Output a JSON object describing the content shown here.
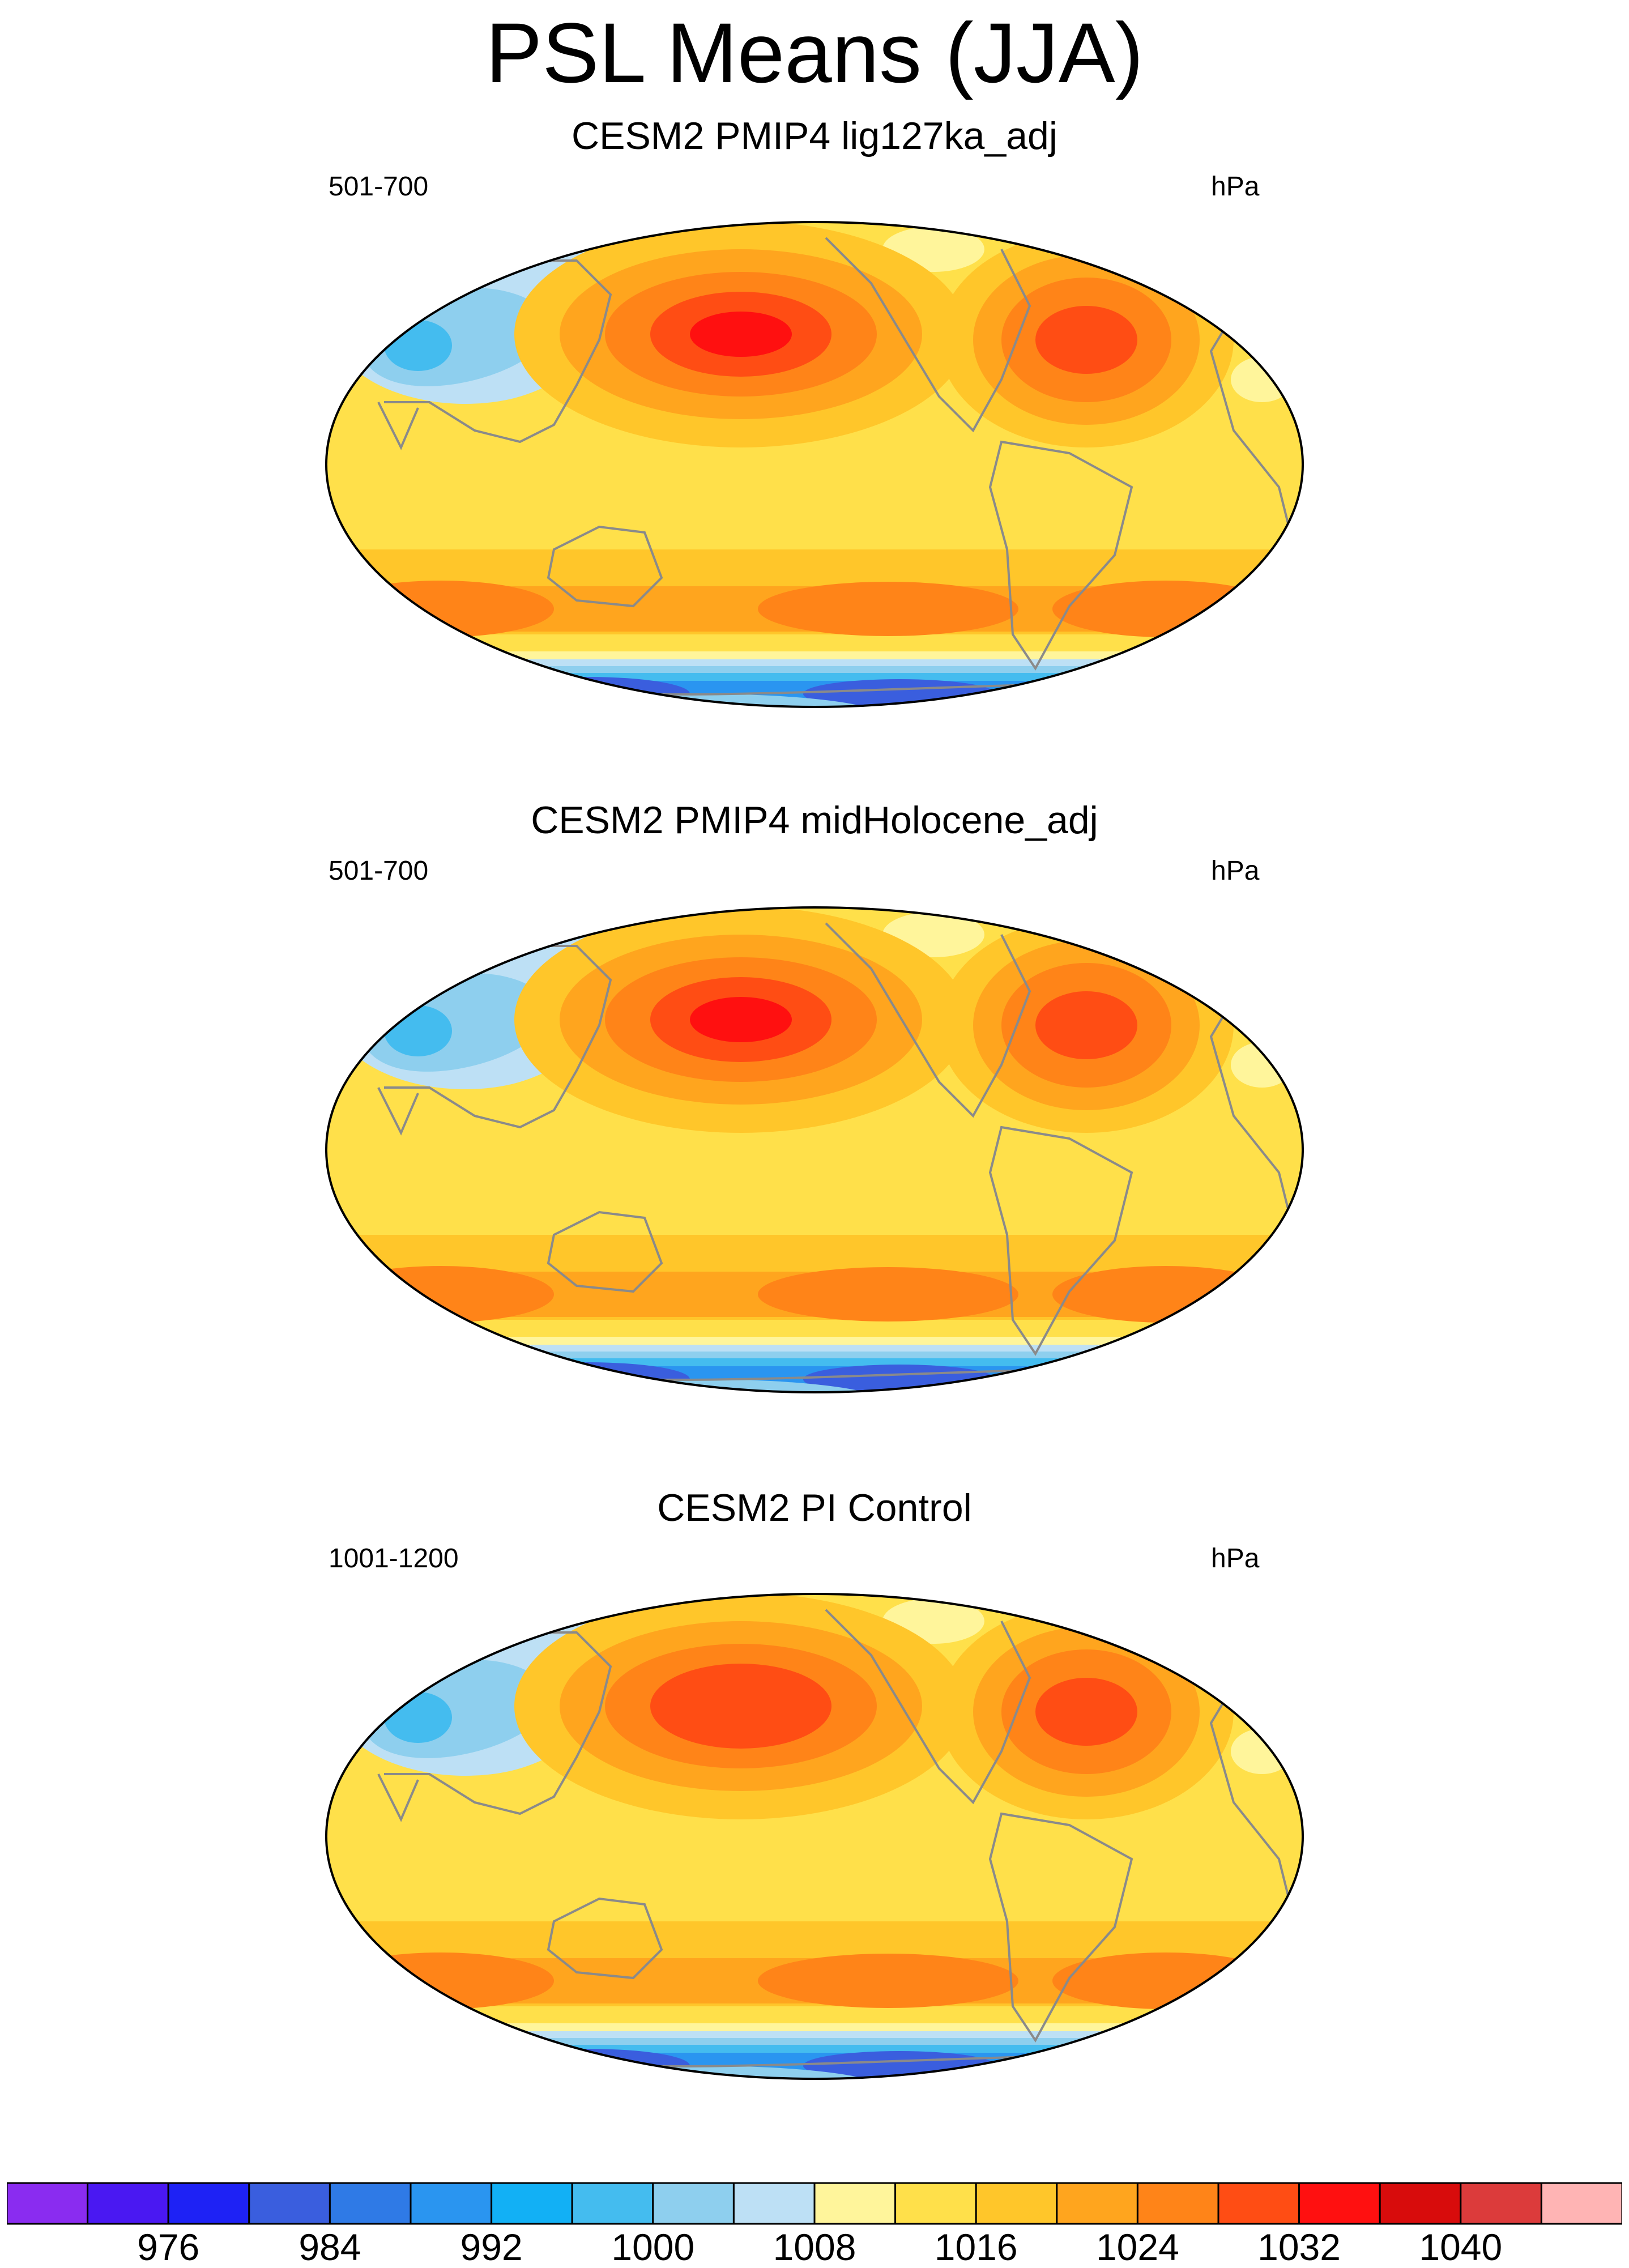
{
  "figure_title": "PSL Means (JJA)",
  "chart_data": {
    "type": "heatmap",
    "projection": "global ellipse (Robinson-like), centered on Pacific",
    "variable": "PSL",
    "season": "JJA",
    "units": "hPa",
    "panels": [
      {
        "title": "CESM2 PMIP4 lig127ka_adj",
        "years": "501-700",
        "units": "hPa",
        "north_pacific_high_max_level": 1032,
        "north_atlantic_high_max_level": 1028
      },
      {
        "title": "CESM2 PMIP4 midHolocene_adj",
        "years": "501-700",
        "units": "hPa",
        "north_pacific_high_max_level": 1032,
        "north_atlantic_high_max_level": 1028
      },
      {
        "title": "CESM2 PI Control",
        "years": "1001-1200",
        "units": "hPa",
        "north_pacific_high_max_level": 1028,
        "north_atlantic_high_max_level": 1028
      }
    ],
    "colorbar": {
      "levels": [
        972,
        976,
        980,
        984,
        988,
        992,
        996,
        1000,
        1004,
        1008,
        1012,
        1016,
        1020,
        1024,
        1028,
        1032,
        1036,
        1040,
        1044
      ],
      "labels": [
        "976",
        "984",
        "992",
        "1000",
        "1008",
        "1016",
        "1024",
        "1032",
        "1040"
      ],
      "label_levels": [
        976,
        984,
        992,
        1000,
        1008,
        1016,
        1024,
        1032,
        1040
      ],
      "colors": [
        "#8a2cf0",
        "#4a18f2",
        "#1e22f5",
        "#3a5ede",
        "#2f7ae6",
        "#2a95f0",
        "#12b0f5",
        "#44bcef",
        "#8ecfee",
        "#bde0f5",
        "#fff59b",
        "#ffe04a",
        "#ffc62a",
        "#ffa51e",
        "#ff8418",
        "#ff4d14",
        "#ff1010",
        "#d80c0c",
        "#dc3b3b",
        "#ffb4b4"
      ]
    }
  }
}
